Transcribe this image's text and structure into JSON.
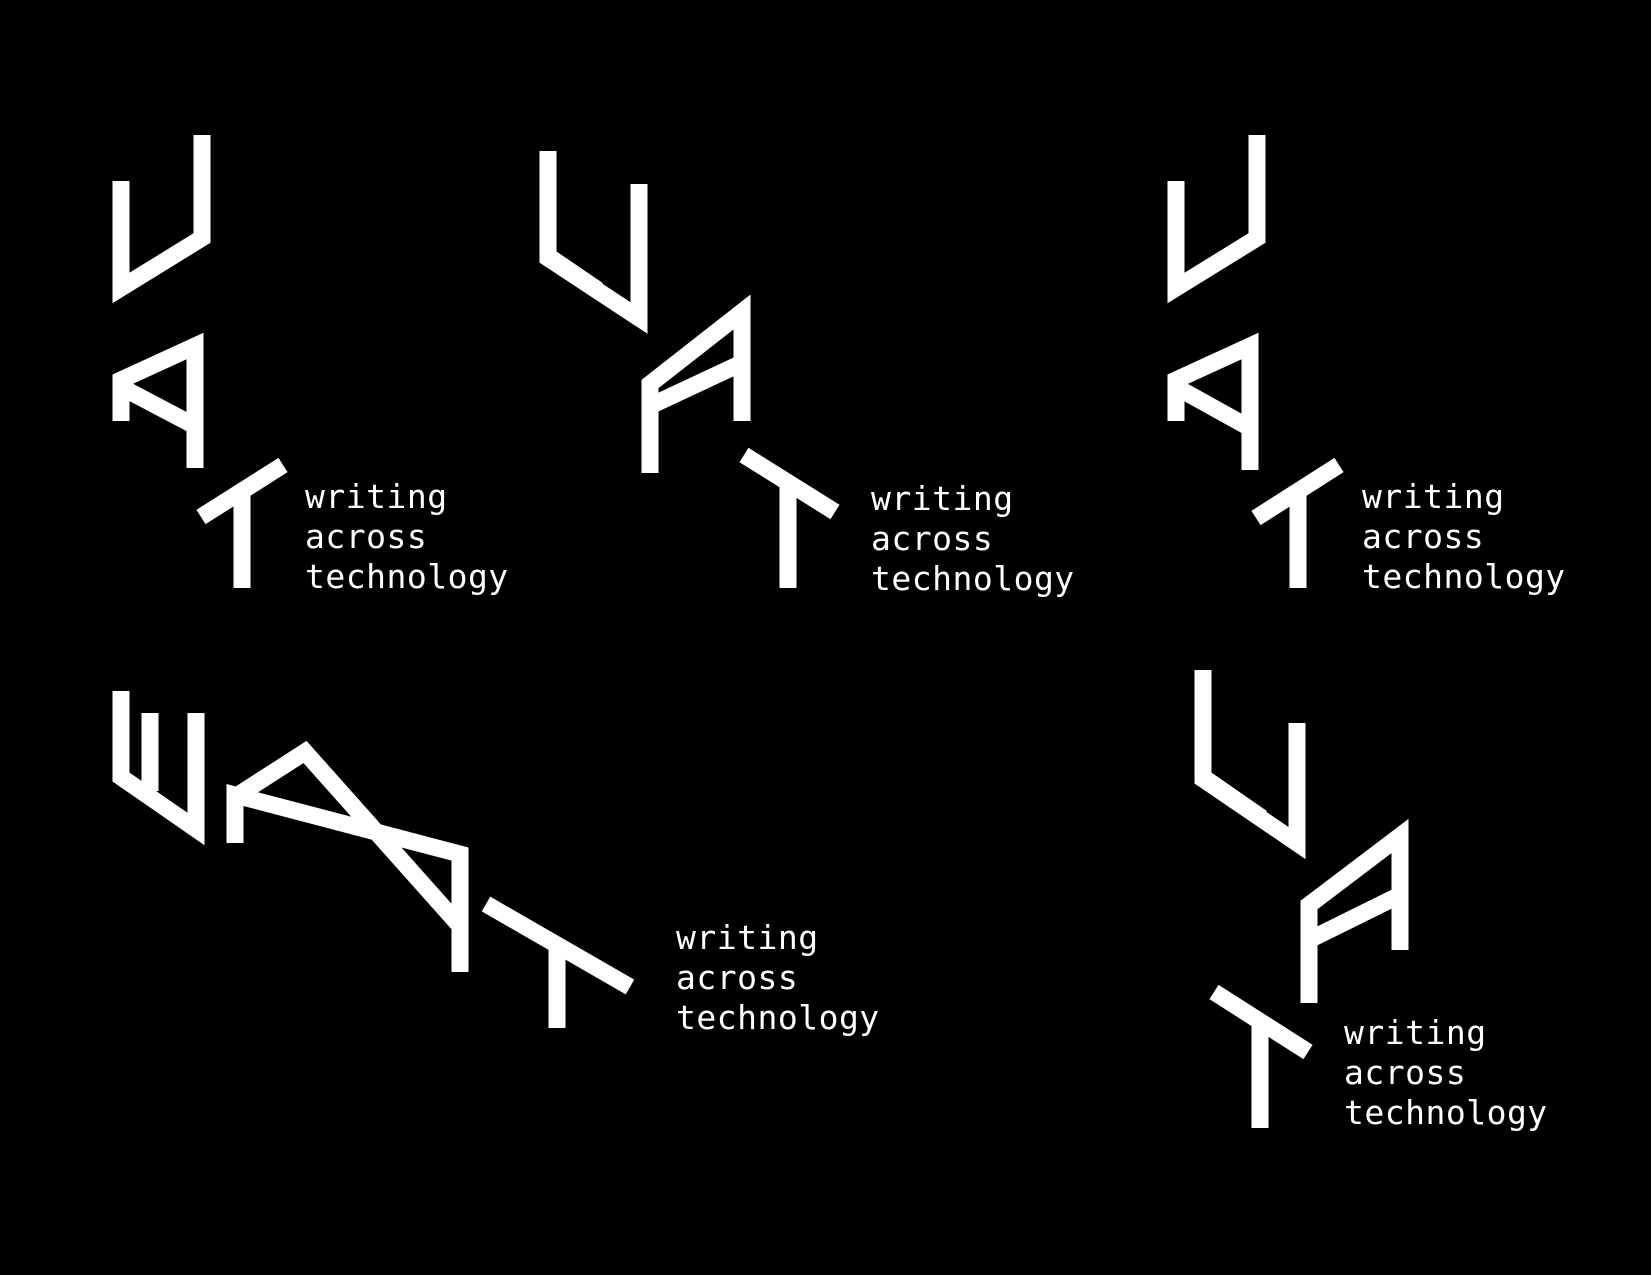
{
  "colors": {
    "background": "#000000",
    "foreground": "#ffffff"
  },
  "logos": [
    {
      "variant": "stacked",
      "line1": "writing",
      "line2": "across",
      "line3": "technology"
    },
    {
      "variant": "stacked-offset",
      "line1": "writing",
      "line2": "across",
      "line3": "technology"
    },
    {
      "variant": "stacked",
      "line1": "writing",
      "line2": "across",
      "line3": "technology"
    },
    {
      "variant": "horizontal",
      "line1": "writing",
      "line2": "across",
      "line3": "technology"
    },
    {
      "variant": "vertical-offset",
      "line1": "writing",
      "line2": "across",
      "line3": "technology"
    }
  ]
}
